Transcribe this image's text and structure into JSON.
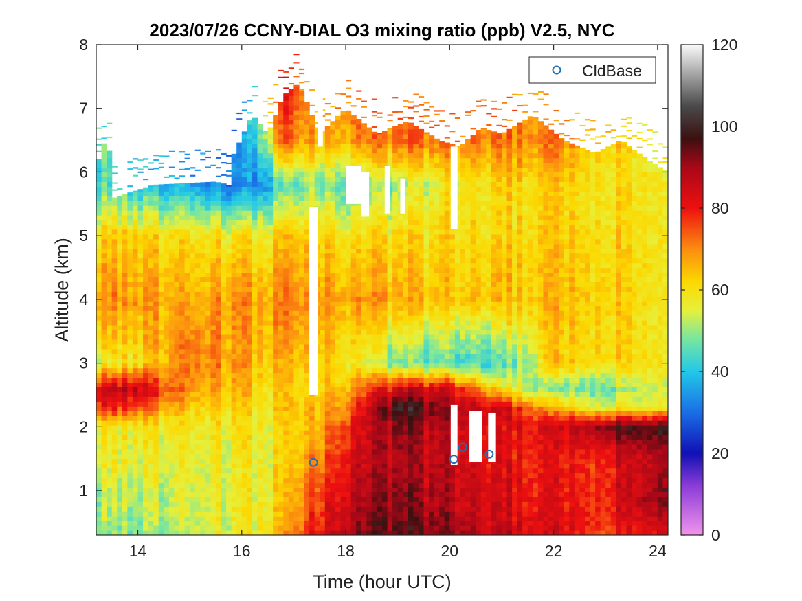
{
  "chart_data": {
    "type": "heatmap",
    "title": "2023/07/26 CCNY-DIAL O3 mixing ratio (ppb) V2.5, NYC",
    "xlabel": "Time (hour UTC)",
    "ylabel": "Altitude (km)",
    "xlim": [
      13.2,
      24.2
    ],
    "ylim": [
      0.3,
      8
    ],
    "x_ticks": [
      14,
      16,
      18,
      20,
      22,
      24
    ],
    "y_ticks": [
      1,
      2,
      3,
      4,
      5,
      6,
      7,
      8
    ],
    "colorbar": {
      "ticks": [
        0,
        20,
        40,
        60,
        80,
        100,
        120
      ],
      "range": [
        0,
        120
      ],
      "stops": [
        {
          "v": 0,
          "color": "#f294ec"
        },
        {
          "v": 12,
          "color": "#8c3cd8"
        },
        {
          "v": 20,
          "color": "#1010b4"
        },
        {
          "v": 30,
          "color": "#1a6ee6"
        },
        {
          "v": 40,
          "color": "#22c8e8"
        },
        {
          "v": 48,
          "color": "#78e6a0"
        },
        {
          "v": 55,
          "color": "#e6f03c"
        },
        {
          "v": 62,
          "color": "#fcd800"
        },
        {
          "v": 70,
          "color": "#fc8c10"
        },
        {
          "v": 80,
          "color": "#ee1010"
        },
        {
          "v": 90,
          "color": "#a80818"
        },
        {
          "v": 97,
          "color": "#3c1010"
        },
        {
          "v": 105,
          "color": "#4a4a4a"
        },
        {
          "v": 120,
          "color": "#fafafa"
        }
      ]
    },
    "ozone_field": {
      "description": "O3 mixing ratio (ppb) sampled at time/altitude anchors",
      "times": [
        13.3,
        14.0,
        15.0,
        16.0,
        16.8,
        17.4,
        18.0,
        19.0,
        20.0,
        21.0,
        22.0,
        23.0,
        24.1
      ],
      "altitudes": [
        0.3,
        0.8,
        1.5,
        2.0,
        2.3,
        2.6,
        3.0,
        4.0,
        5.0,
        5.8,
        6.5,
        7.2
      ],
      "values": [
        [
          50,
          52,
          56,
          58,
          78,
          85,
          57,
          70,
          62,
          46,
          null,
          null
        ],
        [
          47,
          52,
          56,
          58,
          76,
          86,
          60,
          68,
          62,
          40,
          null,
          null
        ],
        [
          52,
          54,
          56,
          58,
          62,
          68,
          72,
          66,
          60,
          36,
          null,
          null
        ],
        [
          56,
          56,
          56,
          58,
          60,
          64,
          66,
          68,
          58,
          30,
          null,
          null
        ],
        [
          66,
          62,
          60,
          60,
          62,
          62,
          64,
          70,
          62,
          44,
          72,
          80
        ],
        [
          80,
          76,
          70,
          65,
          64,
          62,
          65,
          70,
          64,
          50,
          66,
          null
        ],
        [
          90,
          86,
          82,
          78,
          72,
          66,
          60,
          68,
          60,
          46,
          68,
          72
        ],
        [
          95,
          92,
          88,
          92,
          100,
          84,
          46,
          66,
          60,
          50,
          72,
          null
        ],
        [
          92,
          88,
          86,
          86,
          90,
          84,
          44,
          64,
          62,
          58,
          72,
          null
        ],
        [
          86,
          84,
          82,
          82,
          86,
          60,
          44,
          66,
          62,
          62,
          72,
          null
        ],
        [
          82,
          80,
          78,
          82,
          64,
          46,
          62,
          64,
          62,
          62,
          70,
          null
        ],
        [
          78,
          80,
          80,
          94,
          58,
          48,
          62,
          64,
          62,
          60,
          64,
          null
        ],
        [
          84,
          94,
          90,
          100,
          60,
          56,
          60,
          60,
          60,
          60,
          56,
          null
        ]
      ],
      "top_altitude": [
        {
          "t": 13.3,
          "z": 6.2
        },
        {
          "t": 13.4,
          "z": 6.7
        },
        {
          "t": 13.55,
          "z": 5.6
        },
        {
          "t": 14.3,
          "z": 5.8
        },
        {
          "t": 15.5,
          "z": 5.85
        },
        {
          "t": 15.75,
          "z": 5.8
        },
        {
          "t": 15.8,
          "z": 6.2
        },
        {
          "t": 16.2,
          "z": 6.9
        },
        {
          "t": 16.5,
          "z": 6.6
        },
        {
          "t": 16.8,
          "z": 7.2
        },
        {
          "t": 17.1,
          "z": 7.4
        },
        {
          "t": 17.5,
          "z": 6.6
        },
        {
          "t": 18.0,
          "z": 7.0
        },
        {
          "t": 18.6,
          "z": 6.6
        },
        {
          "t": 19.2,
          "z": 6.8
        },
        {
          "t": 19.8,
          "z": 6.5
        },
        {
          "t": 20.2,
          "z": 6.4
        },
        {
          "t": 20.6,
          "z": 6.7
        },
        {
          "t": 21.0,
          "z": 6.6
        },
        {
          "t": 21.6,
          "z": 6.9
        },
        {
          "t": 22.2,
          "z": 6.5
        },
        {
          "t": 22.8,
          "z": 6.3
        },
        {
          "t": 23.3,
          "z": 6.5
        },
        {
          "t": 23.8,
          "z": 6.2
        },
        {
          "t": 24.2,
          "z": 6.0
        }
      ],
      "gaps": [
        {
          "t0": 17.3,
          "t1": 17.47,
          "z0": 2.5,
          "z1": 5.45
        },
        {
          "t0": 17.47,
          "t1": 17.56,
          "z0": 6.4,
          "z1": 8
        },
        {
          "t0": 18.0,
          "t1": 18.3,
          "z0": 5.5,
          "z1": 6.1
        },
        {
          "t0": 18.3,
          "t1": 18.45,
          "z0": 5.3,
          "z1": 6.0
        },
        {
          "t0": 18.75,
          "t1": 18.85,
          "z0": 5.35,
          "z1": 6.1
        },
        {
          "t0": 19.05,
          "t1": 19.15,
          "z0": 5.35,
          "z1": 5.9
        },
        {
          "t0": 20.02,
          "t1": 20.15,
          "z0": 1.4,
          "z1": 2.35
        },
        {
          "t0": 20.02,
          "t1": 20.15,
          "z0": 5.1,
          "z1": 6.4
        },
        {
          "t0": 20.38,
          "t1": 20.62,
          "z0": 1.45,
          "z1": 2.25
        },
        {
          "t0": 20.74,
          "t1": 20.89,
          "z0": 1.45,
          "z1": 2.22
        }
      ]
    },
    "series": [
      {
        "name": "CldBase",
        "marker": "circle",
        "color": "#1f6fb4",
        "x": [
          17.38,
          20.08,
          20.25,
          20.76
        ],
        "y": [
          1.44,
          1.49,
          1.68,
          1.57
        ]
      }
    ],
    "legend": {
      "position": "top-right",
      "entries": [
        "CldBase"
      ]
    }
  }
}
